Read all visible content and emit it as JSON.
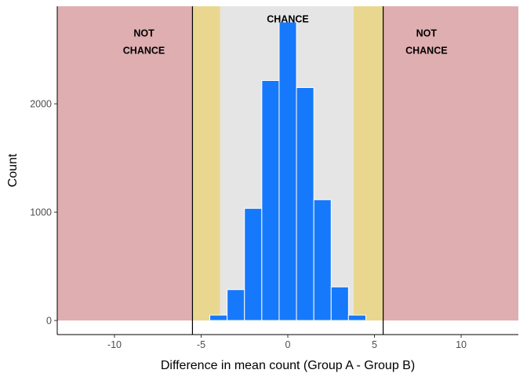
{
  "chart_data": {
    "type": "bar",
    "title": "",
    "xlabel": "Difference in mean count (Group A - Group B)",
    "ylabel": "Count",
    "xlim": [
      -13.3,
      13.3
    ],
    "ylim": [
      -130,
      2900
    ],
    "x_ticks": [
      -10,
      -5,
      0,
      5,
      10
    ],
    "x_tick_labels": [
      "-10",
      "-5",
      "0",
      "5",
      "10"
    ],
    "y_ticks": [
      0,
      1000,
      2000
    ],
    "y_tick_labels": [
      "0",
      "1000",
      "2000"
    ],
    "bin_width": 1,
    "bins": [
      {
        "x": -4,
        "value": 50
      },
      {
        "x": -3,
        "value": 285
      },
      {
        "x": -2,
        "value": 1035
      },
      {
        "x": -1,
        "value": 2215
      },
      {
        "x": 0,
        "value": 2755
      },
      {
        "x": 1,
        "value": 2150
      },
      {
        "x": 2,
        "value": 1115
      },
      {
        "x": 3,
        "value": 310
      },
      {
        "x": 4,
        "value": 50
      }
    ],
    "bar_color": "#1679fb",
    "cutoffs": [
      -5.5,
      5.5
    ],
    "regions": [
      {
        "id": "not-chance-left",
        "from": -13.3,
        "to": -5.5,
        "color": "#dfaeb1"
      },
      {
        "id": "buffer-left",
        "from": -5.5,
        "to": -3.9,
        "color": "#e9d78f"
      },
      {
        "id": "chance",
        "from": -3.9,
        "to": 3.8,
        "color": "#e5e5e5"
      },
      {
        "id": "buffer-right",
        "from": 3.8,
        "to": 5.5,
        "color": "#e9d78f"
      },
      {
        "id": "not-chance-right",
        "from": 5.5,
        "to": 13.3,
        "color": "#dfaeb1"
      }
    ],
    "annotations": [
      {
        "lines": [
          "NOT",
          "CHANCE"
        ],
        "x": -8.3,
        "y": 2620
      },
      {
        "lines": [
          "CHANCE"
        ],
        "x": 0,
        "y": 2750
      },
      {
        "lines": [
          "NOT",
          "CHANCE"
        ],
        "x": 8,
        "y": 2620
      }
    ],
    "grid": false,
    "legend": "none"
  }
}
